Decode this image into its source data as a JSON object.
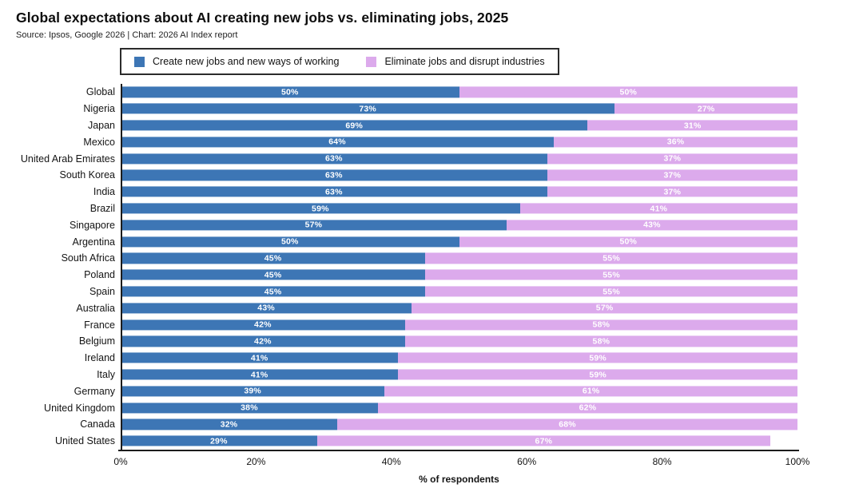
{
  "header": {
    "title": "Global expectations about AI creating new jobs vs. eliminating jobs, 2025",
    "source": "Source: Ipsos, Google 2026 | Chart: 2026 AI Index report"
  },
  "colors": {
    "create": "#3d76b5",
    "eliminate": "#dcaaec",
    "axis": "#1c1c1c",
    "value_label": "#ffffff"
  },
  "chart_data": {
    "type": "bar",
    "stacked": true,
    "orientation": "horizontal",
    "title": "Global expectations about AI creating new jobs vs. eliminating jobs, 2025",
    "xlabel": "% of respondents",
    "xlim": [
      0,
      100
    ],
    "x_ticks": [
      "0%",
      "20%",
      "40%",
      "60%",
      "80%",
      "100%"
    ],
    "legend_position": "top",
    "grid": false,
    "categories": [
      "Global",
      "Nigeria",
      "Japan",
      "Mexico",
      "United Arab Emirates",
      "South Korea",
      "India",
      "Brazil",
      "Singapore",
      "Argentina",
      "South Africa",
      "Poland",
      "Spain",
      "Australia",
      "France",
      "Belgium",
      "Ireland",
      "Italy",
      "Germany",
      "United Kingdom",
      "Canada",
      "United States"
    ],
    "series": [
      {
        "name": "Create new jobs and new ways of working",
        "color": "#3d76b5",
        "values": [
          50,
          73,
          69,
          64,
          63,
          63,
          63,
          59,
          57,
          50,
          45,
          45,
          45,
          43,
          42,
          42,
          41,
          41,
          39,
          38,
          32,
          29
        ]
      },
      {
        "name": "Eliminate jobs and disrupt industries",
        "color": "#dcaaec",
        "values": [
          50,
          27,
          31,
          36,
          37,
          37,
          37,
          41,
          43,
          50,
          55,
          55,
          55,
          57,
          58,
          58,
          59,
          59,
          61,
          62,
          68,
          67
        ]
      }
    ],
    "value_label_format": "{v}%",
    "note": "United States row totals 96%, bar ends short of 100%"
  }
}
